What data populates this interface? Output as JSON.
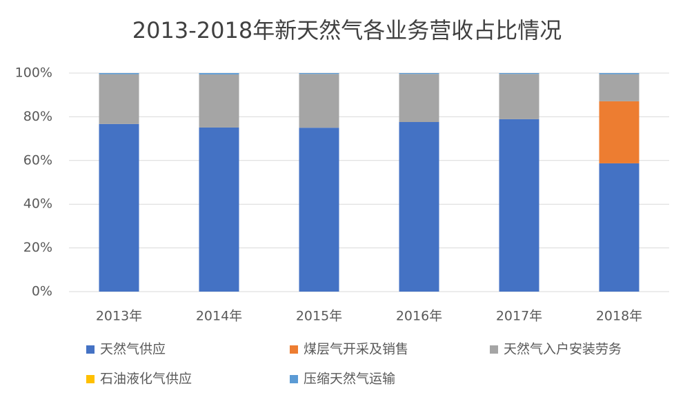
{
  "chart_data": {
    "type": "stacked_bar",
    "title": "2013-2018年新天然气各业务营收占比情况",
    "categories": [
      "2013年",
      "2014年",
      "2015年",
      "2016年",
      "2017年",
      "2018年"
    ],
    "series": [
      {
        "name": "天然气供应",
        "color": "#4472c4",
        "values": [
          76.7,
          75.1,
          75.0,
          77.6,
          78.9,
          58.7
        ]
      },
      {
        "name": "煤层气开采及销售",
        "color": "#ed7d31",
        "values": [
          0,
          0,
          0,
          0,
          0,
          28.4
        ]
      },
      {
        "name": "天然气入户安装劳务",
        "color": "#a5a5a5",
        "values": [
          22.8,
          24.3,
          24.6,
          22.0,
          20.7,
          12.4
        ]
      },
      {
        "name": "石油液化气供应",
        "color": "#ffc000",
        "values": [
          0,
          0,
          0,
          0,
          0,
          0
        ]
      },
      {
        "name": "压缩天然气运输",
        "color": "#5b9bd5",
        "values": [
          0.5,
          0.6,
          0.4,
          0.4,
          0.4,
          0.5
        ]
      }
    ],
    "ylim": [
      0,
      100
    ],
    "yticks": [
      {
        "value": 0,
        "label": "0%"
      },
      {
        "value": 20,
        "label": "20%"
      },
      {
        "value": 40,
        "label": "40%"
      },
      {
        "value": 60,
        "label": "60%"
      },
      {
        "value": 80,
        "label": "80%"
      },
      {
        "value": 100,
        "label": "100%"
      }
    ],
    "grid": true
  }
}
